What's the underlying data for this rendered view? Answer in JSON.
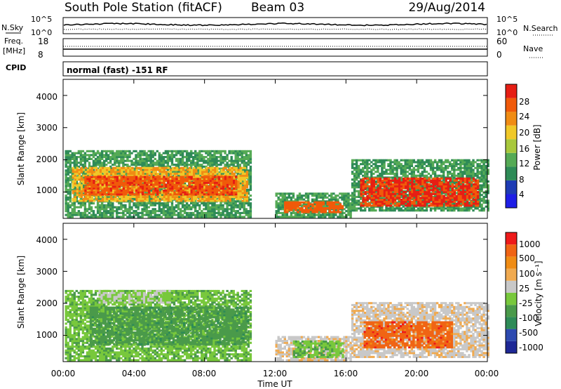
{
  "header": {
    "station": "South Pole Station (fitACF)",
    "beam": "Beam 03",
    "date": "29/Aug/2014"
  },
  "top_panels": {
    "nsky_label": "N.Sky",
    "nsearch_label": "N.Search",
    "left_ticks_noise": [
      "10^5",
      "10^0"
    ],
    "right_ticks_noise": [
      "10^5",
      "10^0"
    ],
    "freq_label_1": "Freq.",
    "freq_label_2": "[MHz]",
    "freq_ticks": [
      "18",
      "8"
    ],
    "nave_label": "Nave",
    "nave_ticks": [
      "60",
      "0"
    ],
    "cpid_label": "CPID",
    "cpid_text": "normal (fast) -151 RF"
  },
  "colors": {
    "power_scale": [
      "#1e1ee6",
      "#1e3cb4",
      "#2e8b57",
      "#55aa55",
      "#a8c83c",
      "#f0c828",
      "#f08c14",
      "#f05a0a",
      "#e61e14"
    ],
    "velocity_scale": [
      "#ee1a1a",
      "#f06414",
      "#f08c14",
      "#f0aa50",
      "#c8c8c8",
      "#78c83c",
      "#4a9a4a",
      "#2e8b57",
      "#2d4ab0",
      "#1e2896"
    ]
  },
  "chart_data": [
    {
      "type": "heatmap",
      "name": "power",
      "ylabel": "Slant Range [km]",
      "yticks": [
        "4000",
        "3000",
        "2000",
        "1000"
      ],
      "ylim": [
        180,
        4500
      ],
      "xlim": [
        0,
        24
      ],
      "xticks_hours": [
        0,
        4,
        8,
        12,
        16,
        20,
        24
      ],
      "colorbar": {
        "label": "Power [dB]",
        "ticks": [
          "28",
          "24",
          "20",
          "16",
          "12",
          "8",
          "4"
        ],
        "range": [
          0,
          30
        ]
      },
      "regions": [
        {
          "t0": 0.1,
          "t1": 10.6,
          "r0": 200,
          "r1": 2300,
          "v": 10
        },
        {
          "t0": 0.5,
          "t1": 10.4,
          "r0": 700,
          "r1": 1750,
          "v": 20
        },
        {
          "t0": 1.2,
          "t1": 9.8,
          "r0": 900,
          "r1": 1500,
          "v": 26
        },
        {
          "t0": 12.0,
          "t1": 16.2,
          "r0": 200,
          "r1": 950,
          "v": 10
        },
        {
          "t0": 12.5,
          "t1": 15.8,
          "r0": 350,
          "r1": 700,
          "v": 25
        },
        {
          "t0": 16.3,
          "t1": 24.0,
          "r0": 400,
          "r1": 2000,
          "v": 10
        },
        {
          "t0": 16.8,
          "t1": 23.5,
          "r0": 550,
          "r1": 1400,
          "v": 27
        }
      ]
    },
    {
      "type": "heatmap",
      "name": "velocity",
      "ylabel": "Slant Range [km]",
      "xlabel": "Time UT",
      "yticks": [
        "4000",
        "3000",
        "2000",
        "1000"
      ],
      "xticks": [
        "00:00",
        "04:00",
        "08:00",
        "12:00",
        "16:00",
        "20:00",
        "00:00"
      ],
      "xticks_hours": [
        0,
        4,
        8,
        12,
        16,
        20,
        24
      ],
      "ylim": [
        180,
        4500
      ],
      "xlim": [
        0,
        24
      ],
      "colorbar": {
        "label": "Velocity [m s⁻¹]",
        "ticks": [
          "1000",
          "500",
          "100",
          "25",
          "-25",
          "-100",
          "-500",
          "-1000"
        ],
        "range": [
          -1000,
          1000
        ]
      },
      "regions": [
        {
          "t0": 0.1,
          "t1": 10.6,
          "r0": 200,
          "r1": 2400,
          "v": -150
        },
        {
          "t0": 1.5,
          "t1": 10.4,
          "r0": 700,
          "r1": 1900,
          "v": -300
        },
        {
          "t0": 2.0,
          "t1": 6.0,
          "r0": 2000,
          "r1": 2400,
          "v": 0
        },
        {
          "t0": 12.0,
          "t1": 16.2,
          "r0": 200,
          "r1": 950,
          "v": 150
        },
        {
          "t0": 13.0,
          "t1": 15.8,
          "r0": 300,
          "r1": 800,
          "v": -150
        },
        {
          "t0": 16.3,
          "t1": 24.0,
          "r0": 300,
          "r1": 2000,
          "v": 150
        },
        {
          "t0": 17.0,
          "t1": 22.0,
          "r0": 600,
          "r1": 1400,
          "v": 700
        }
      ]
    }
  ]
}
